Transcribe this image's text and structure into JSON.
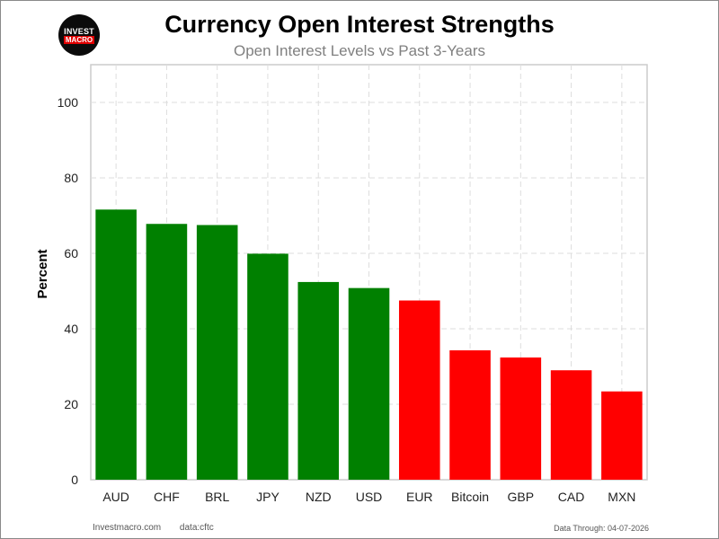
{
  "logo": {
    "line1": "INVEST",
    "line2": "MACRO"
  },
  "chart_data": {
    "type": "bar",
    "title": "Currency Open Interest Strengths",
    "subtitle": "Open Interest Levels vs Past 3-Years",
    "xlabel": "",
    "ylabel": "Percent",
    "categories": [
      "AUD",
      "CHF",
      "BRL",
      "JPY",
      "NZD",
      "USD",
      "EUR",
      "Bitcoin",
      "GBP",
      "CAD",
      "MXN"
    ],
    "values": [
      71.6,
      67.8,
      67.5,
      59.9,
      52.4,
      50.8,
      47.5,
      34.3,
      32.4,
      29.0,
      23.4
    ],
    "colors": [
      "#008000",
      "#008000",
      "#008000",
      "#008000",
      "#008000",
      "#008000",
      "#ff0000",
      "#ff0000",
      "#ff0000",
      "#ff0000",
      "#ff0000"
    ],
    "ylim": [
      0,
      110
    ],
    "yticks": [
      0,
      20,
      40,
      60,
      80,
      100
    ],
    "grid": true,
    "legend": "none"
  },
  "footer": {
    "site": "Investmacro.com",
    "source": "data:cftc",
    "data_through": "Data Through: 04-07-2026"
  }
}
